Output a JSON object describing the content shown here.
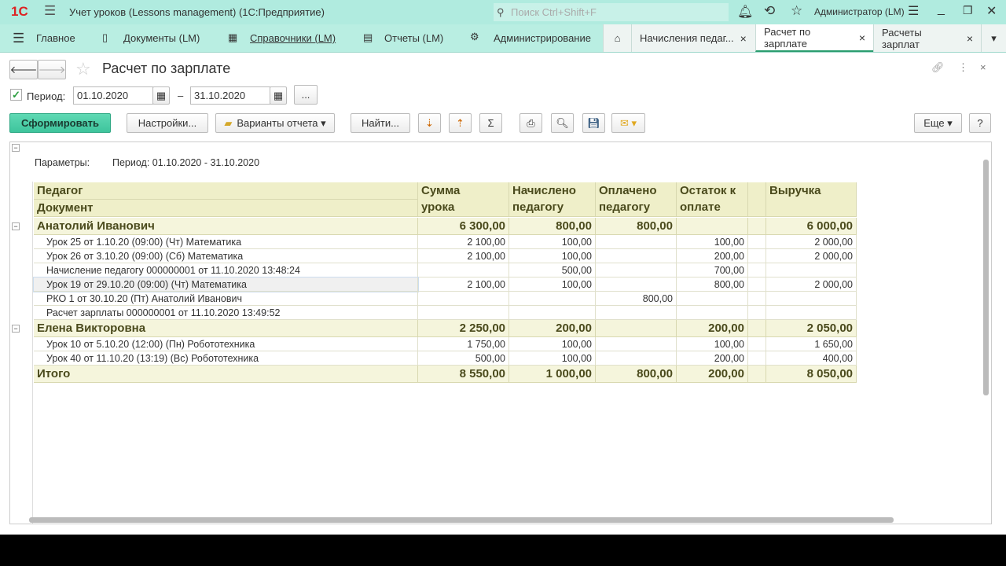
{
  "app": {
    "title": "Учет уроков (Lessons management)  (1С:Предприятие)",
    "search_placeholder": "Поиск Ctrl+Shift+F",
    "user": "Администратор (LM)",
    "accent": "#b0ebdf"
  },
  "nav": {
    "items": [
      "Главное",
      "Документы (LM)",
      "Справочники (LM)",
      "Отчеты (LM)",
      "Администрирование"
    ],
    "tabs": [
      "Начисления педаг...",
      "Расчет по зарплате",
      "Расчеты зарплат"
    ]
  },
  "form": {
    "title": "Расчет по зарплате",
    "period_label": "Период:",
    "period_checked": true,
    "date_from": "01.10.2020",
    "date_to": "31.10.2020",
    "dash": "–",
    "more": "...",
    "toolbar": {
      "generate": "Сформировать",
      "settings": "Настройки...",
      "variants": "Варианты отчета",
      "find": "Найти...",
      "more": "Еще",
      "help": "?"
    }
  },
  "report": {
    "params_label": "Параметры:",
    "params_value": "Период: 01.10.2020 - 31.10.2020",
    "headers": {
      "teacher": "Педагог",
      "document": "Документ",
      "c1": [
        "Сумма",
        "урока"
      ],
      "c2": [
        "Начислено",
        "педагогу"
      ],
      "c3": [
        "Оплачено",
        "педагогу"
      ],
      "c4": [
        "Остаток к",
        "оплате"
      ],
      "c5": "",
      "c6": "Выручка"
    },
    "rows": [
      {
        "type": "group",
        "name": "Анатолий Иванович",
        "v": [
          "6 300,00",
          "800,00",
          "800,00",
          "",
          "",
          "6 000,00"
        ]
      },
      {
        "type": "detail",
        "name": "Урок 25 от 1.10.20 (09:00) (Чт) Математика",
        "v": [
          "2 100,00",
          "100,00",
          "",
          "100,00",
          "",
          "2 000,00"
        ]
      },
      {
        "type": "detail",
        "name": "Урок 26 от 3.10.20 (09:00) (Сб) Математика",
        "v": [
          "2 100,00",
          "100,00",
          "",
          "200,00",
          "",
          "2 000,00"
        ]
      },
      {
        "type": "detail",
        "name": "Начисление педагогу 000000001 от 11.10.2020 13:48:24",
        "v": [
          "",
          "500,00",
          "",
          "700,00",
          "",
          ""
        ]
      },
      {
        "type": "detail",
        "name": "Урок 19 от 29.10.20 (09:00) (Чт) Математика",
        "v": [
          "2 100,00",
          "100,00",
          "",
          "800,00",
          "",
          "2 000,00"
        ]
      },
      {
        "type": "detail",
        "name": "РКО 1 от 30.10.20 (Пт) Анатолий Иванович",
        "v": [
          "",
          "",
          "800,00",
          "",
          "",
          ""
        ]
      },
      {
        "type": "detail",
        "name": "Расчет зарплаты 000000001 от 11.10.2020 13:49:52",
        "v": [
          "",
          "",
          "",
          "",
          "",
          ""
        ]
      },
      {
        "type": "group",
        "name": "Елена Викторовна",
        "v": [
          "2 250,00",
          "200,00",
          "",
          "200,00",
          "",
          "2 050,00"
        ]
      },
      {
        "type": "detail",
        "name": "Урок 10 от 5.10.20 (12:00) (Пн) Робототехника",
        "v": [
          "1 750,00",
          "100,00",
          "",
          "100,00",
          "",
          "1 650,00"
        ]
      },
      {
        "type": "detail",
        "name": "Урок 40 от 11.10.20 (13:19) (Вс) Робототехника",
        "v": [
          "500,00",
          "100,00",
          "",
          "200,00",
          "",
          "400,00"
        ]
      },
      {
        "type": "group",
        "name": "Итого",
        "v": [
          "8 550,00",
          "1 000,00",
          "800,00",
          "200,00",
          "",
          "8 050,00"
        ]
      }
    ]
  }
}
